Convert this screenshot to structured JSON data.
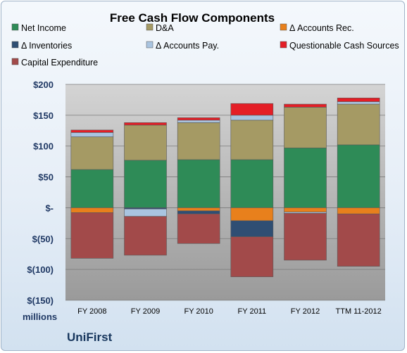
{
  "brand": "UniFirst",
  "chart_data": {
    "type": "bar",
    "stacked": true,
    "title": "Free Cash Flow Components",
    "ylabel": "millions",
    "ylim": [
      -150,
      200
    ],
    "yticks": [
      200,
      150,
      100,
      50,
      0,
      -50,
      -100,
      -150
    ],
    "ytick_labels": [
      "$200",
      "$150",
      "$100",
      "$50",
      "$-",
      "$(50)",
      "$(100)",
      "$(150)"
    ],
    "grid": true,
    "legend_position": "top",
    "categories": [
      "FY 2008",
      "FY 2009",
      "FY 2010",
      "FY 2011",
      "FY 2012",
      "TTM 11-2012"
    ],
    "series": [
      {
        "name": "Net Income",
        "color": "#2e8b57",
        "values": [
          62,
          77,
          78,
          78,
          97,
          102
        ]
      },
      {
        "name": "D&A",
        "color": "#a59a64",
        "values": [
          53,
          57,
          60,
          64,
          66,
          66
        ]
      },
      {
        "name": "Δ Accounts Rec.",
        "color": "#e8801c",
        "values": [
          -8,
          0,
          -5,
          -21,
          -7,
          -10
        ]
      },
      {
        "name": "Δ Inventories",
        "color": "#2f4e73",
        "values": [
          0,
          -2,
          -5,
          -26,
          0,
          0
        ]
      },
      {
        "name": "Δ Accounts Pay.",
        "color": "#a9c4e0",
        "values": [
          7,
          -12,
          4,
          8,
          -2,
          4
        ]
      },
      {
        "name": "Questionable Cash Sources",
        "color": "#e41e26",
        "values": [
          4,
          4,
          4,
          19,
          5,
          6
        ]
      },
      {
        "name": "Capital Expenditure",
        "color": "#a24a4a",
        "values": [
          -74,
          -63,
          -48,
          -65,
          -76,
          -85
        ]
      }
    ]
  }
}
